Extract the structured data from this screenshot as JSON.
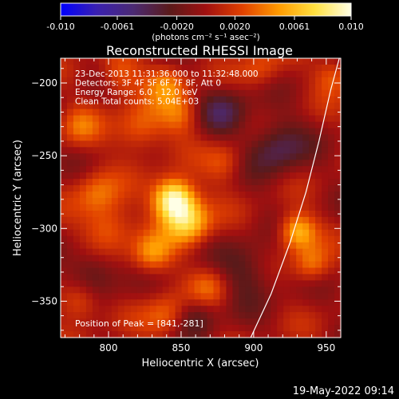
{
  "colors": {
    "background": "#000000",
    "foreground": "#ffffff",
    "colormap": [
      "#0000ff",
      "#3a20b0",
      "#4b2a73",
      "#5a1a1a",
      "#a01010",
      "#e04000",
      "#ff9a00",
      "#ffe040",
      "#ffffe6"
    ]
  },
  "colorbar": {
    "min": -0.01,
    "max": 0.01,
    "ticks": [
      "-0.010",
      "-0.0061",
      "-0.0020",
      "0.0020",
      "0.0061",
      "0.010"
    ],
    "tick_values": [
      -0.01,
      -0.0061,
      -0.002,
      0.002,
      0.0061,
      0.01
    ],
    "unit_label": "(photons cm⁻² s⁻¹ asec⁻²)"
  },
  "chart_data": {
    "type": "heatmap",
    "title": "Reconstructed RHESSI Image",
    "xlabel": "Heliocentric X (arcsec)",
    "ylabel": "Heliocentric Y (arcsec)",
    "xlim": [
      767,
      960
    ],
    "ylim": [
      -375,
      -183
    ],
    "x_ticks": [
      800,
      850,
      900,
      950
    ],
    "y_ticks": [
      -200,
      -250,
      -300,
      -350
    ],
    "x_tick_labels": [
      "800",
      "850",
      "900",
      "950"
    ],
    "y_tick_labels": [
      "−200",
      "−250",
      "−300",
      "−350"
    ],
    "info_lines": [
      "23-Dec-2013 11:31:36.000 to 11:32:48.000",
      "Detectors: 3F 4F 5F 6F 7F 8F, Att 0",
      "Energy Range: 6.0 - 12.0 keV",
      "Clean    Total counts: 5.04E+03"
    ],
    "peak_label": "Position of Peak = [841,-281]",
    "peak_position": [
      841,
      -281
    ],
    "limb_curve": [
      [
        898,
        -375
      ],
      [
        912,
        -345
      ],
      [
        925,
        -310
      ],
      [
        936,
        -275
      ],
      [
        945,
        -240
      ],
      [
        953,
        -205
      ],
      [
        959,
        -183
      ]
    ],
    "sources": [
      {
        "x": 845,
        "y": -280,
        "amp": 0.0105,
        "sigma": 10
      },
      {
        "x": 855,
        "y": -296,
        "amp": 0.0065,
        "sigma": 11
      },
      {
        "x": 830,
        "y": -318,
        "amp": 0.0045,
        "sigma": 10
      },
      {
        "x": 800,
        "y": -300,
        "amp": 0.0042,
        "sigma": 12
      },
      {
        "x": 792,
        "y": -275,
        "amp": 0.0035,
        "sigma": 11
      },
      {
        "x": 822,
        "y": -232,
        "amp": 0.004,
        "sigma": 12
      },
      {
        "x": 850,
        "y": -222,
        "amp": 0.0035,
        "sigma": 10
      },
      {
        "x": 840,
        "y": -200,
        "amp": 0.004,
        "sigma": 10
      },
      {
        "x": 808,
        "y": -195,
        "amp": 0.0035,
        "sigma": 10
      },
      {
        "x": 880,
        "y": -255,
        "amp": 0.003,
        "sigma": 10
      },
      {
        "x": 930,
        "y": -302,
        "amp": 0.0065,
        "sigma": 9
      },
      {
        "x": 940,
        "y": -325,
        "amp": 0.004,
        "sigma": 9
      },
      {
        "x": 905,
        "y": -190,
        "amp": 0.0028,
        "sigma": 10
      },
      {
        "x": 955,
        "y": -195,
        "amp": 0.0035,
        "sigma": 9
      },
      {
        "x": 780,
        "y": -230,
        "amp": 0.003,
        "sigma": 10
      },
      {
        "x": 780,
        "y": -350,
        "amp": 0.004,
        "sigma": 10
      },
      {
        "x": 840,
        "y": -360,
        "amp": 0.0035,
        "sigma": 11
      },
      {
        "x": 870,
        "y": -340,
        "amp": 0.003,
        "sigma": 10
      },
      {
        "x": 895,
        "y": -330,
        "amp": -0.003,
        "sigma": 14
      },
      {
        "x": 880,
        "y": -220,
        "amp": -0.0035,
        "sigma": 12
      },
      {
        "x": 915,
        "y": -245,
        "amp": -0.004,
        "sigma": 14
      },
      {
        "x": 790,
        "y": -330,
        "amp": -0.0035,
        "sigma": 12
      },
      {
        "x": 860,
        "y": -360,
        "amp": -0.003,
        "sigma": 10
      }
    ]
  },
  "timestamp": "19-May-2022 09:14"
}
